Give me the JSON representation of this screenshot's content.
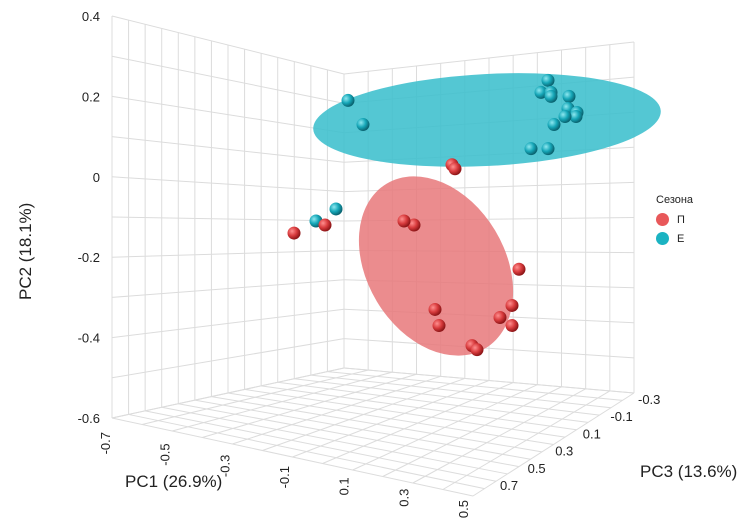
{
  "chart_data": {
    "type": "scatter",
    "projection": "3d",
    "xlabel": "PC1 (26.9%)",
    "ylabel": "PC2 (18.1%)",
    "zlabel": "PC3 (13.6%)",
    "x_ticks": [
      "-0.7",
      "-0.5",
      "-0.3",
      "-0.1",
      "0.1",
      "0.3",
      "0.5"
    ],
    "y_ticks": [
      "-0.6",
      "-0.4",
      "-0.2",
      "0",
      "0.2",
      "0.4"
    ],
    "z_ticks": [
      "-0.3",
      "-0.1",
      "0.1",
      "0.3",
      "0.5",
      "0.7"
    ],
    "grid": true,
    "legend": {
      "title": "Сезона",
      "placement": "right",
      "items": [
        {
          "label": "П",
          "color": "#e8585a"
        },
        {
          "label": "Е",
          "color": "#1bb3c2"
        }
      ]
    },
    "series": [
      {
        "name": "П",
        "color": "#d83b3d",
        "ellipse_color": "#e8787a",
        "points": [
          {
            "pc2": 0.03
          },
          {
            "pc2": 0.02
          },
          {
            "pc2": -0.12
          },
          {
            "pc2": -0.11
          },
          {
            "pc2": -0.14
          },
          {
            "pc2": -0.12
          },
          {
            "pc2": -0.23
          },
          {
            "pc2": -0.33
          },
          {
            "pc2": -0.37
          },
          {
            "pc2": -0.35
          },
          {
            "pc2": -0.32
          },
          {
            "pc2": -0.37
          },
          {
            "pc2": -0.42
          },
          {
            "pc2": -0.43
          }
        ]
      },
      {
        "name": "Е",
        "color": "#16a7b8",
        "ellipse_color": "#3cbfcd",
        "points": [
          {
            "pc2": 0.19
          },
          {
            "pc2": 0.13
          },
          {
            "pc2": -0.11
          },
          {
            "pc2": -0.08
          },
          {
            "pc2": 0.24
          },
          {
            "pc2": 0.21
          },
          {
            "pc2": 0.21
          },
          {
            "pc2": 0.2
          },
          {
            "pc2": 0.2
          },
          {
            "pc2": 0.17
          },
          {
            "pc2": 0.16
          },
          {
            "pc2": 0.15
          },
          {
            "pc2": 0.13
          },
          {
            "pc2": 0.15
          },
          {
            "pc2": 0.07
          },
          {
            "pc2": 0.07
          }
        ]
      }
    ]
  }
}
